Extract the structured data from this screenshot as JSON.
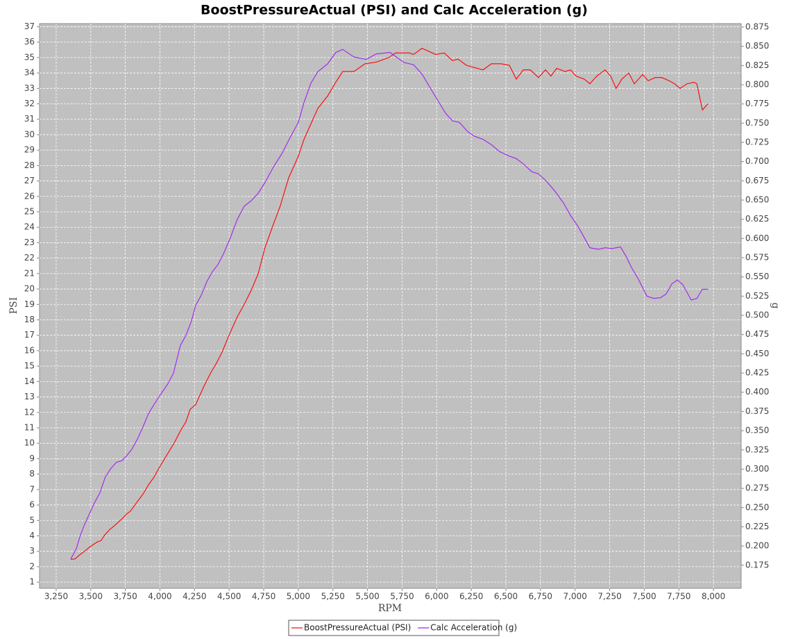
{
  "chart_data": {
    "type": "line",
    "title": "BoostPressureActual (PSI) and Calc Acceleration (g)",
    "x_label": "RPM",
    "y_label": "PSI",
    "y2_label": "g",
    "xlim": [
      3130,
      8200
    ],
    "ylim": [
      0.6,
      37.2
    ],
    "y2lim": [
      0.145,
      0.8795
    ],
    "grid": true,
    "legend": "bottom",
    "xticks": [
      {
        "value": 3250,
        "label": "3,250"
      },
      {
        "value": 3500,
        "label": "3,500"
      },
      {
        "value": 3750,
        "label": "3,750"
      },
      {
        "value": 4000,
        "label": "4,000"
      },
      {
        "value": 4250,
        "label": "4,250"
      },
      {
        "value": 4500,
        "label": "4,500"
      },
      {
        "value": 4750,
        "label": "4,750"
      },
      {
        "value": 5000,
        "label": "5,000"
      },
      {
        "value": 5250,
        "label": "5,250"
      },
      {
        "value": 5500,
        "label": "5,500"
      },
      {
        "value": 5750,
        "label": "5,750"
      },
      {
        "value": 6000,
        "label": "6,000"
      },
      {
        "value": 6250,
        "label": "6,250"
      },
      {
        "value": 6500,
        "label": "6,500"
      },
      {
        "value": 6750,
        "label": "6,750"
      },
      {
        "value": 7000,
        "label": "7,000"
      },
      {
        "value": 7250,
        "label": "7,250"
      },
      {
        "value": 7500,
        "label": "7,500"
      },
      {
        "value": 7750,
        "label": "7,750"
      },
      {
        "value": 8000,
        "label": "8,000"
      }
    ],
    "yticks": [
      1,
      2,
      3,
      4,
      5,
      6,
      7,
      8,
      9,
      10,
      11,
      12,
      13,
      14,
      15,
      16,
      17,
      18,
      19,
      20,
      21,
      22,
      23,
      24,
      25,
      26,
      27,
      28,
      29,
      30,
      31,
      32,
      33,
      34,
      35,
      36,
      37
    ],
    "y2ticks": [
      0.175,
      {
        "value": 0.2,
        "label": "0.200"
      },
      0.225,
      {
        "value": 0.25,
        "label": "0.250"
      },
      0.275,
      {
        "value": 0.3,
        "label": "0.300"
      },
      0.325,
      {
        "value": 0.35,
        "label": "0.350"
      },
      0.375,
      {
        "value": 0.4,
        "label": "0.400"
      },
      0.425,
      {
        "value": 0.45,
        "label": "0.450"
      },
      0.475,
      {
        "value": 0.5,
        "label": "0.500"
      },
      0.525,
      {
        "value": 0.55,
        "label": "0.550"
      },
      0.575,
      {
        "value": 0.6,
        "label": "0.600"
      },
      0.625,
      {
        "value": 0.65,
        "label": "0.650"
      },
      0.675,
      {
        "value": 0.7,
        "label": "0.700"
      },
      0.725,
      {
        "value": 0.75,
        "label": "0.750"
      },
      0.775,
      {
        "value": 0.8,
        "label": "0.800"
      },
      0.825,
      {
        "value": 0.85,
        "label": "0.850"
      },
      0.875
    ],
    "series": [
      {
        "name": "BoostPressureActual (PSI)",
        "color": "#ff0000",
        "axis": "y",
        "x": [
          3355,
          3385,
          3425,
          3455,
          3496,
          3546,
          3576,
          3596,
          3636,
          3676,
          3726,
          3757,
          3787,
          3827,
          3877,
          3917,
          3957,
          3987,
          4027,
          4068,
          4108,
          4148,
          4188,
          4218,
          4258,
          4318,
          4369,
          4409,
          4449,
          4499,
          4559,
          4609,
          4659,
          4710,
          4760,
          4820,
          4870,
          4930,
          5000,
          5041,
          5091,
          5141,
          5211,
          5271,
          5321,
          5402,
          5482,
          5562,
          5653,
          5703,
          5803,
          5833,
          5893,
          5993,
          6054,
          6114,
          6154,
          6214,
          6335,
          6395,
          6465,
          6525,
          6575,
          6626,
          6676,
          6736,
          6786,
          6826,
          6867,
          6927,
          6967,
          7007,
          7067,
          7107,
          7157,
          7217,
          7257,
          7297,
          7338,
          7388,
          7428,
          7488,
          7528,
          7578,
          7628,
          7679,
          7719,
          7759,
          7809,
          7860,
          7880,
          7920,
          7960
        ],
        "values": [
          2.48,
          2.5,
          2.8,
          3.0,
          3.3,
          3.6,
          3.7,
          4.0,
          4.4,
          4.7,
          5.1,
          5.4,
          5.6,
          6.1,
          6.7,
          7.3,
          7.8,
          8.3,
          8.9,
          9.5,
          10.1,
          10.8,
          11.4,
          12.2,
          12.5,
          13.7,
          14.6,
          15.2,
          15.9,
          17.0,
          18.2,
          19.0,
          19.9,
          21.0,
          22.7,
          24.2,
          25.4,
          27.2,
          28.6,
          29.7,
          30.7,
          31.7,
          32.5,
          33.4,
          34.1,
          34.1,
          34.6,
          34.7,
          35.0,
          35.3,
          35.3,
          35.2,
          35.6,
          35.2,
          35.3,
          34.8,
          34.9,
          34.5,
          34.2,
          34.6,
          34.6,
          34.5,
          33.6,
          34.2,
          34.2,
          33.7,
          34.2,
          33.8,
          34.3,
          34.1,
          34.2,
          33.8,
          33.6,
          33.3,
          33.8,
          34.2,
          33.8,
          33.0,
          33.6,
          34.0,
          33.3,
          33.9,
          33.5,
          33.7,
          33.7,
          33.5,
          33.3,
          33.0,
          33.3,
          33.4,
          33.3,
          31.6,
          32.0
        ]
      },
      {
        "name": "Calc Acceleration (g)",
        "color": "#a020f0",
        "axis": "y2",
        "x": [
          3355,
          3395,
          3425,
          3455,
          3496,
          3526,
          3566,
          3606,
          3646,
          3686,
          3726,
          3767,
          3797,
          3837,
          3877,
          3917,
          3957,
          4007,
          4057,
          4098,
          4148,
          4188,
          4228,
          4258,
          4298,
          4339,
          4379,
          4419,
          4459,
          4509,
          4559,
          4609,
          4659,
          4710,
          4760,
          4820,
          4880,
          4940,
          5000,
          5041,
          5091,
          5141,
          5211,
          5271,
          5321,
          5402,
          5492,
          5562,
          5663,
          5763,
          5833,
          5893,
          5953,
          6003,
          6064,
          6114,
          6164,
          6224,
          6274,
          6335,
          6395,
          6455,
          6525,
          6575,
          6626,
          6686,
          6736,
          6796,
          6857,
          6917,
          6967,
          7017,
          7067,
          7107,
          7168,
          7218,
          7268,
          7328,
          7368,
          7408,
          7458,
          7519,
          7569,
          7619,
          7659,
          7699,
          7739,
          7779,
          7839,
          7880,
          7920,
          7960
        ],
        "values": [
          0.183,
          0.196,
          0.214,
          0.228,
          0.244,
          0.256,
          0.269,
          0.29,
          0.301,
          0.309,
          0.311,
          0.319,
          0.326,
          0.339,
          0.355,
          0.372,
          0.384,
          0.398,
          0.411,
          0.425,
          0.461,
          0.474,
          0.493,
          0.513,
          0.526,
          0.544,
          0.557,
          0.566,
          0.58,
          0.601,
          0.625,
          0.642,
          0.649,
          0.659,
          0.673,
          0.693,
          0.71,
          0.731,
          0.751,
          0.777,
          0.802,
          0.817,
          0.827,
          0.842,
          0.846,
          0.836,
          0.833,
          0.84,
          0.842,
          0.829,
          0.826,
          0.814,
          0.796,
          0.781,
          0.763,
          0.753,
          0.751,
          0.739,
          0.733,
          0.729,
          0.722,
          0.713,
          0.707,
          0.704,
          0.697,
          0.687,
          0.684,
          0.674,
          0.661,
          0.646,
          0.63,
          0.617,
          0.601,
          0.588,
          0.586,
          0.588,
          0.587,
          0.589,
          0.577,
          0.562,
          0.547,
          0.525,
          0.522,
          0.523,
          0.528,
          0.541,
          0.546,
          0.54,
          0.52,
          0.522,
          0.534,
          0.534
        ]
      }
    ]
  }
}
